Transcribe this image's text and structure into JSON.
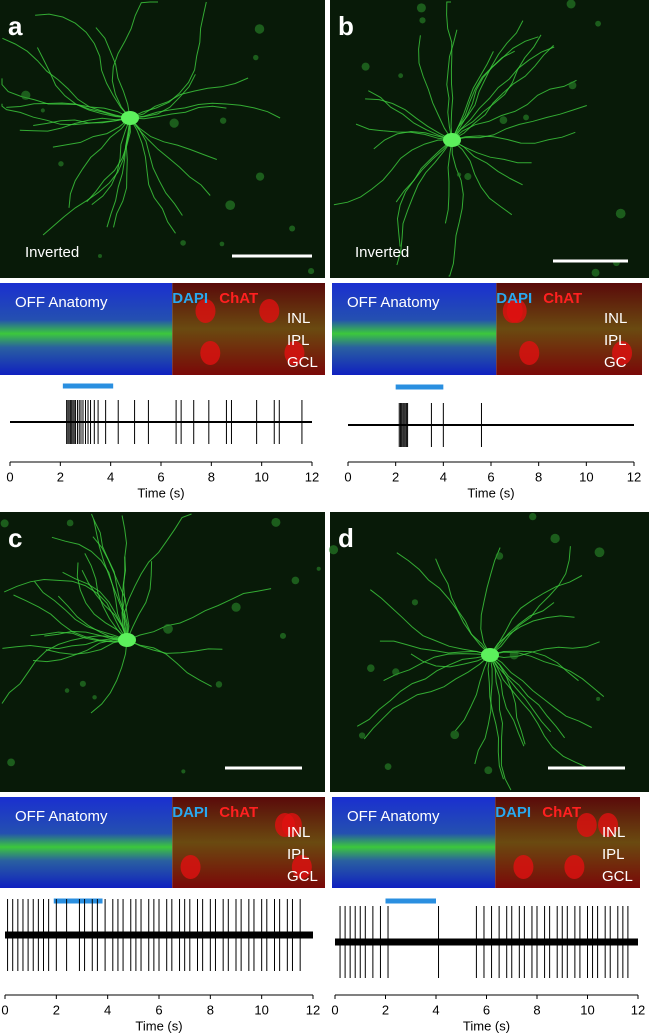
{
  "panels": [
    {
      "letter": "a",
      "caption": "Inverted",
      "anatomy": {
        "title": "OFF Anatomy",
        "stain1": "DAPI",
        "stain2": "ChAT",
        "layers": [
          "INL",
          "IPL",
          "GCL"
        ]
      },
      "trace": {
        "xlabel": "Time (s)",
        "xlim": [
          0,
          12
        ],
        "xticks": [
          0,
          2,
          4,
          6,
          8,
          10,
          12
        ],
        "stimulus": [
          2.1,
          4.1
        ],
        "spikes": [
          2.25,
          2.3,
          2.35,
          2.4,
          2.45,
          2.5,
          2.55,
          2.6,
          2.68,
          2.75,
          2.82,
          2.9,
          3.0,
          3.1,
          3.2,
          3.35,
          3.5,
          3.8,
          4.3,
          4.95,
          5.5,
          6.6,
          6.8,
          7.3,
          7.9,
          8.6,
          8.8,
          9.8,
          10.5,
          10.7,
          11.6
        ]
      }
    },
    {
      "letter": "b",
      "caption": "Inverted",
      "anatomy": {
        "title": "OFF Anatomy",
        "stain1": "DAPI",
        "stain2": "ChAT",
        "layers": [
          "INL",
          "IPL",
          "GC"
        ]
      },
      "trace": {
        "xlabel": "Time (s)",
        "xlim": [
          0,
          12
        ],
        "xticks": [
          0,
          2,
          4,
          6,
          8,
          10,
          12
        ],
        "stimulus": [
          2.0,
          4.0
        ],
        "spikes": [
          2.15,
          2.2,
          2.25,
          2.3,
          2.35,
          2.4,
          2.45,
          2.5,
          3.5,
          4.0,
          5.6
        ]
      }
    },
    {
      "letter": "c",
      "anatomy": {
        "title": "OFF Anatomy",
        "stain1": "DAPI",
        "stain2": "ChAT",
        "layers": [
          "INL",
          "IPL",
          "GCL"
        ]
      },
      "trace": {
        "xlabel": "Time (s)",
        "xlim": [
          0,
          12
        ],
        "xticks": [
          0,
          2,
          4,
          6,
          8,
          10,
          12
        ],
        "stimulus": [
          1.9,
          3.8
        ],
        "spikes": [
          0.1,
          0.3,
          0.5,
          0.7,
          0.9,
          1.1,
          1.3,
          1.5,
          1.7,
          2.0,
          2.4,
          2.9,
          3.1,
          3.4,
          3.6,
          3.9,
          4.2,
          4.4,
          4.6,
          4.9,
          5.1,
          5.3,
          5.6,
          5.8,
          6.0,
          6.3,
          6.5,
          6.8,
          7.0,
          7.2,
          7.5,
          7.7,
          8.0,
          8.2,
          8.5,
          8.7,
          9.0,
          9.2,
          9.5,
          9.7,
          10.0,
          10.2,
          10.5,
          10.7,
          11.0,
          11.2,
          11.5
        ]
      }
    },
    {
      "letter": "d",
      "anatomy": {
        "title": "OFF Anatomy",
        "stain1": "DAPI",
        "stain2": "ChAT",
        "layers": [
          "INL",
          "IPL",
          "GCL"
        ]
      },
      "trace": {
        "xlabel": "Time (s)",
        "xlim": [
          0,
          12
        ],
        "xticks": [
          0,
          2,
          4,
          6,
          8,
          10,
          12
        ],
        "stimulus": [
          2.0,
          4.0
        ],
        "spikes": [
          0.2,
          0.4,
          0.6,
          0.8,
          1.0,
          1.2,
          1.5,
          1.8,
          2.1,
          4.1,
          5.6,
          5.9,
          6.2,
          6.5,
          6.8,
          7.0,
          7.3,
          7.5,
          7.8,
          8.0,
          8.3,
          8.5,
          8.8,
          9.0,
          9.2,
          9.5,
          9.7,
          10.0,
          10.2,
          10.4,
          10.7,
          10.9,
          11.2,
          11.4,
          11.6
        ]
      }
    }
  ]
}
